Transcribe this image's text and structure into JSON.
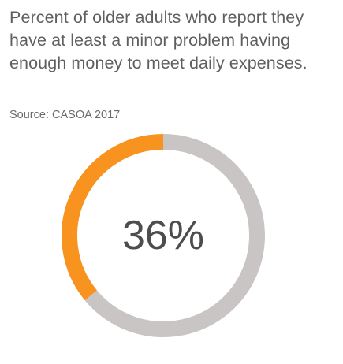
{
  "header": {
    "title": "Percent of older adults who report they have at least a minor problem having enough money to meet daily expenses.",
    "source": "Source: CASOA 2017"
  },
  "chart_data": {
    "type": "pie",
    "subtype": "donut",
    "title": "Percent of older adults who report they have at least a minor problem having enough money to meet daily expenses.",
    "slices": [
      {
        "value": 36,
        "color": "#f7931e"
      },
      {
        "value": 64,
        "color": "#c9c5c4"
      }
    ],
    "center_label": "36%",
    "colors": {
      "highlight": "#f7931e",
      "remainder": "#c9c5c4",
      "label_text": "#4d4d4d"
    }
  }
}
